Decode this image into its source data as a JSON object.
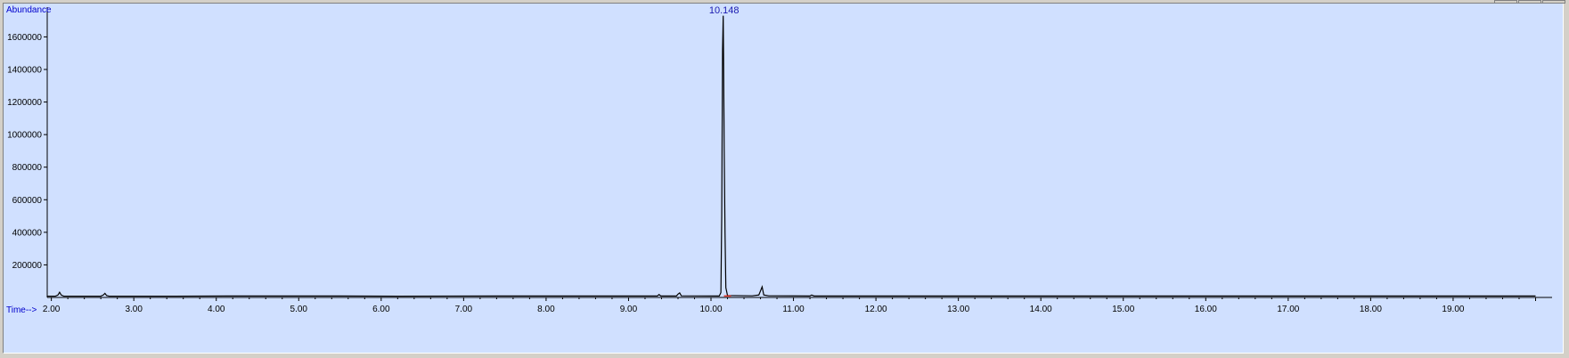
{
  "chart_data": {
    "type": "line",
    "ylabel": "Abundance",
    "xlabel": "Time-->",
    "xlim": [
      1.95,
      20.2
    ],
    "ylim": [
      0,
      1750000
    ],
    "x_ticks": [
      2.0,
      3.0,
      4.0,
      5.0,
      6.0,
      7.0,
      8.0,
      9.0,
      10.0,
      11.0,
      12.0,
      13.0,
      14.0,
      15.0,
      16.0,
      17.0,
      18.0,
      19.0
    ],
    "x_tick_labels": [
      "2.00",
      "3.00",
      "4.00",
      "5.00",
      "6.00",
      "7.00",
      "8.00",
      "9.00",
      "10.00",
      "11.00",
      "12.00",
      "13.00",
      "14.00",
      "15.00",
      "16.00",
      "17.00",
      "18.00",
      "19.00"
    ],
    "y_ticks": [
      200000,
      400000,
      600000,
      800000,
      1000000,
      1200000,
      1400000,
      1600000
    ],
    "y_tick_labels": [
      "200000",
      "400000",
      "600000",
      "800000",
      "1000000",
      "1200000",
      "1400000",
      "1600000"
    ],
    "series": [
      {
        "color": "#000000",
        "x": [
          1.95,
          2.05,
          2.08,
          2.1,
          2.12,
          2.15,
          2.6,
          2.63,
          2.65,
          2.67,
          2.7,
          3.5,
          4.2,
          5.3,
          6.2,
          7.4,
          8.3,
          9.35,
          9.37,
          9.39,
          9.58,
          9.6,
          9.62,
          9.64,
          10.1,
          10.12,
          10.13,
          10.14,
          10.145,
          10.148,
          10.152,
          10.16,
          10.17,
          10.18,
          10.2,
          10.5,
          10.58,
          10.6,
          10.62,
          10.64,
          10.7,
          11.2,
          11.22,
          11.25,
          12.0,
          13.0,
          14.0,
          15.0,
          16.0,
          17.0,
          18.0,
          19.0,
          20.0
        ],
        "y": [
          8000,
          8000,
          15000,
          32000,
          15000,
          8000,
          8000,
          15000,
          25000,
          12000,
          8000,
          8000,
          9000,
          9000,
          8000,
          9000,
          9000,
          9000,
          18000,
          9000,
          9000,
          20000,
          28000,
          10000,
          9000,
          30000,
          500000,
          1520000,
          1650000,
          1730000,
          1500000,
          900000,
          400000,
          60000,
          12000,
          10000,
          15000,
          40000,
          65000,
          15000,
          10000,
          9000,
          15000,
          9000,
          9000,
          9000,
          9000,
          9000,
          9000,
          9000,
          9000,
          9000,
          9000
        ]
      }
    ],
    "annotations": [
      {
        "text": "10.148",
        "x": 10.148
      }
    ],
    "baseline_marker": {
      "color": "#e03020",
      "x": 10.2
    },
    "grid": false,
    "colors": {
      "plot_background": "#d0e0ff",
      "trace": "#000000",
      "axis_title": "#0000cc",
      "peak_label": "#1a1ab0",
      "window": "#d4d0c8"
    }
  }
}
